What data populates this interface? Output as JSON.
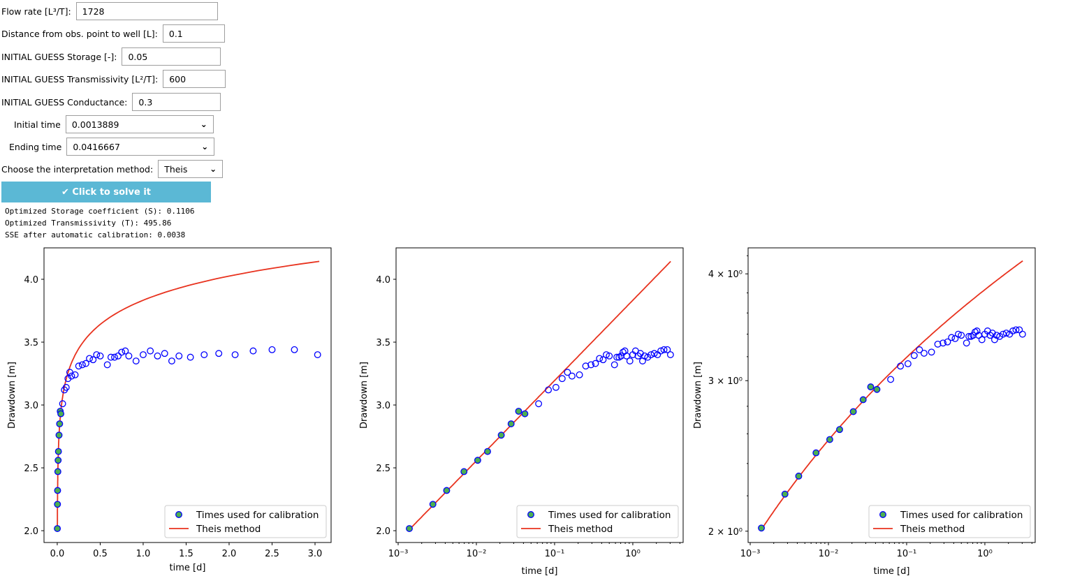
{
  "form": {
    "flow_rate": {
      "label": "Flow rate [L³/T]:",
      "value": "1728"
    },
    "distance": {
      "label": "Distance from obs. point to well [L]:",
      "value": "0.1"
    },
    "storage": {
      "label": "INITIAL GUESS Storage [-]:",
      "value": "0.05"
    },
    "transmissivity": {
      "label": "INITIAL GUESS Transmissivity [L²/T]:",
      "value": "600"
    },
    "conductance": {
      "label": "INITIAL GUESS Conductance:",
      "value": "0.3"
    },
    "initial_time": {
      "label": "Initial time",
      "value": "0.0013889"
    },
    "ending_time": {
      "label": "Ending time",
      "value": "0.0416667"
    },
    "method": {
      "label": "Choose the interpretation method:",
      "value": "Theis"
    },
    "solve_button": "✔ Click to solve it"
  },
  "output": {
    "line1": "Optimized Storage coefficient (S): 0.1106",
    "line2": "Optimized Transmissivity (T): 495.86",
    "line3": "SSE after automatic calibration: 0.0038"
  },
  "chart_data": [
    {
      "type": "scatter+line",
      "xlabel": "time [d]",
      "ylabel": "Drawdown [m]",
      "xscale": "linear",
      "yscale": "linear",
      "xlim": [
        -0.154,
        3.187
      ],
      "ylim": [
        1.906,
        4.25
      ],
      "xticks": [
        "0.0",
        "0.5",
        "1.0",
        "1.5",
        "2.0",
        "2.5",
        "3.0"
      ],
      "yticks": [
        "2.0",
        "2.5",
        "3.0",
        "3.5",
        "4.0"
      ],
      "legend": "lower right"
    },
    {
      "type": "scatter+line",
      "xlabel": "time [d]",
      "ylabel": "Drawdown [m]",
      "xscale": "log",
      "yscale": "linear",
      "xlim": [
        0.00094,
        4.4
      ],
      "ylim": [
        1.906,
        4.25
      ],
      "xticks": [
        "10⁻³",
        "10⁻²",
        "10⁻¹",
        "10⁰"
      ],
      "yticks": [
        "2.0",
        "2.5",
        "3.0",
        "3.5",
        "4.0"
      ],
      "legend": "lower right"
    },
    {
      "type": "scatter+line",
      "xlabel": "time [d]",
      "ylabel": "Drawdown [m]",
      "xscale": "log",
      "yscale": "log",
      "xlim": [
        0.00094,
        4.4
      ],
      "ylim": [
        1.94,
        4.29
      ],
      "xticks": [
        "10⁻³",
        "10⁻²",
        "10⁻¹",
        "10⁰"
      ],
      "yticks": [
        "2 × 10⁰",
        "3 × 10⁰",
        "4 × 10⁰"
      ],
      "legend": "lower right"
    }
  ],
  "series": {
    "calibration_name": "Times used for calibration",
    "model_name": "Theis method",
    "observed_color": "#0000ff",
    "calibration_fill": "#4caf50",
    "model_color": "#e8321e",
    "model_params": {
      "Q": 1728,
      "r": 0.1,
      "S": 0.1106,
      "T": 495.86,
      "t_start": 0.00139,
      "t_end": 3.05
    },
    "calibration_count": 10,
    "observed_t": [
      0.00139,
      0.00278,
      0.00417,
      0.00694,
      0.0104,
      0.0139,
      0.0208,
      0.0278,
      0.0347,
      0.0417,
      0.0625,
      0.0833,
      0.104,
      0.125,
      0.146,
      0.167,
      0.208,
      0.25,
      0.292,
      0.333,
      0.375,
      0.417,
      0.458,
      0.5,
      0.583,
      0.625,
      0.667,
      0.708,
      0.75,
      0.792,
      0.833,
      0.917,
      1.0,
      1.083,
      1.167,
      1.25,
      1.333,
      1.417,
      1.55,
      1.71,
      1.88,
      2.07,
      2.28,
      2.5,
      2.76,
      3.03
    ],
    "observed_s": [
      2.017,
      2.21,
      2.32,
      2.47,
      2.56,
      2.63,
      2.76,
      2.85,
      2.95,
      2.93,
      3.01,
      3.12,
      3.14,
      3.21,
      3.26,
      3.23,
      3.24,
      3.31,
      3.32,
      3.33,
      3.37,
      3.36,
      3.4,
      3.39,
      3.32,
      3.38,
      3.38,
      3.39,
      3.42,
      3.43,
      3.39,
      3.35,
      3.4,
      3.43,
      3.39,
      3.41,
      3.35,
      3.39,
      3.38,
      3.4,
      3.41,
      3.4,
      3.43,
      3.44,
      3.44,
      3.4
    ]
  }
}
